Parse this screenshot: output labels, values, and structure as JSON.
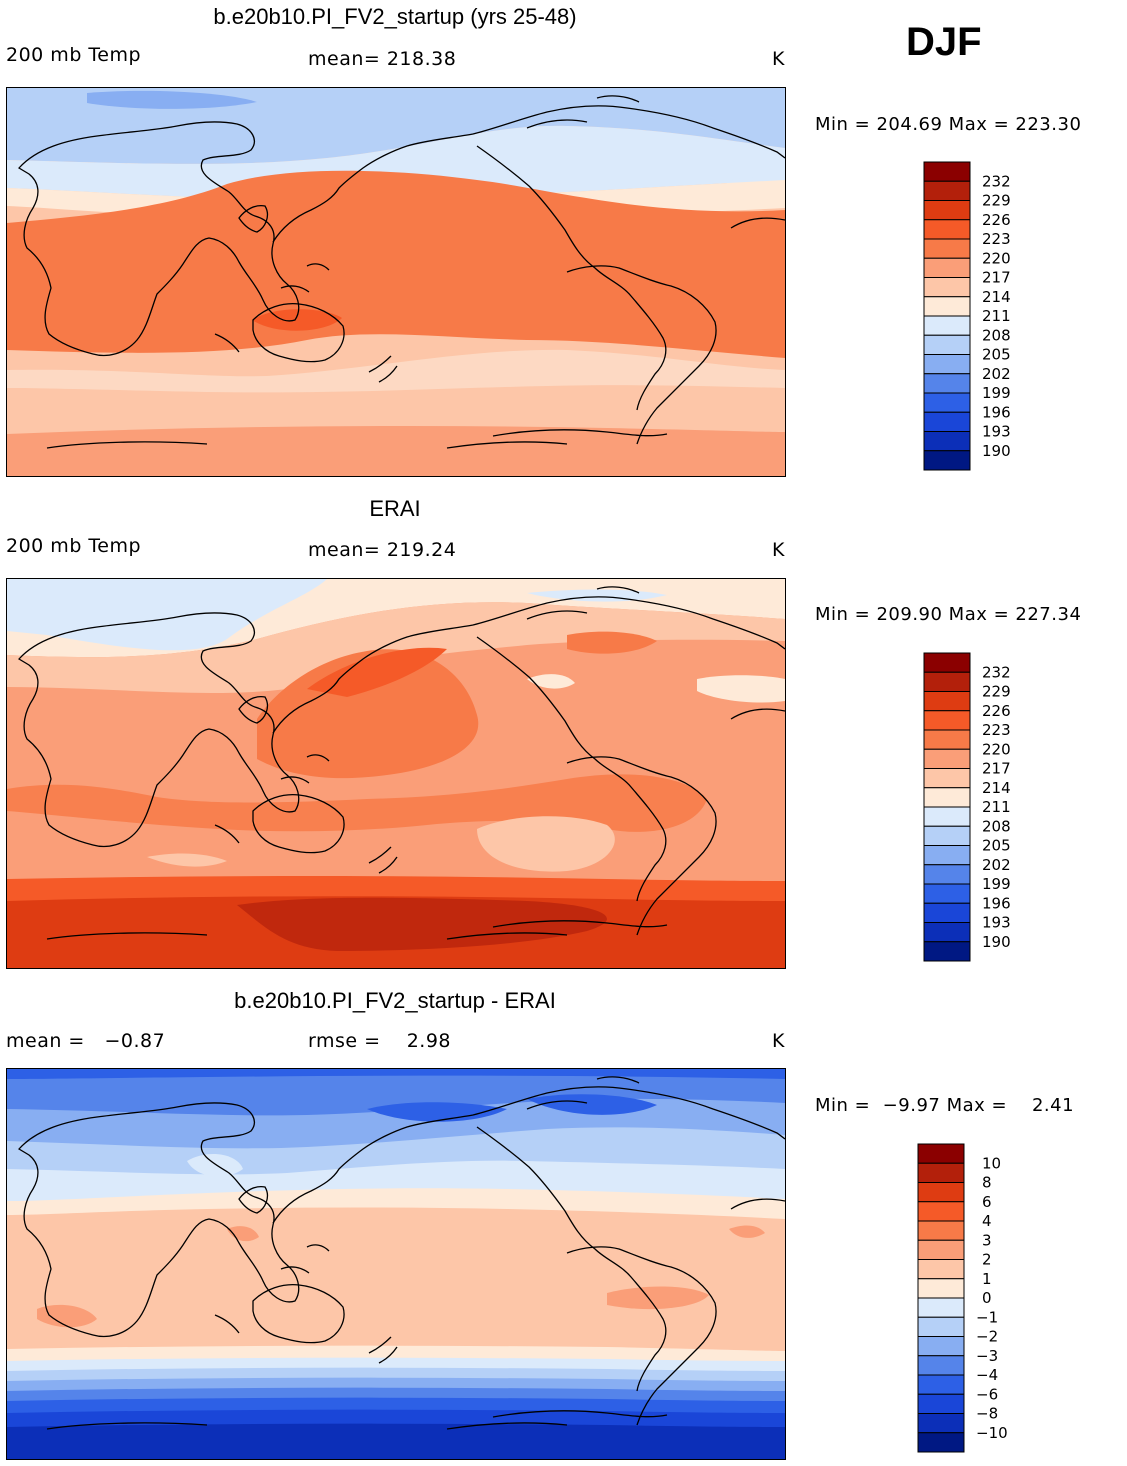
{
  "season": "DJF",
  "chart_data": [
    {
      "type": "heatmap",
      "title": "b.e20b10.PI_FV2_startup (yrs 25-48)",
      "left_label": "200 mb Temp",
      "center_label": "mean= 218.38",
      "units": "K",
      "stats": "Min = 204.69 Max = 223.30",
      "colorbar_labels": [
        "232",
        "229",
        "226",
        "223",
        "220",
        "217",
        "214",
        "211",
        "208",
        "205",
        "202",
        "199",
        "196",
        "193",
        "190"
      ]
    },
    {
      "type": "heatmap",
      "title": "ERAI",
      "left_label": "200 mb Temp",
      "center_label": "mean= 219.24",
      "units": "K",
      "stats": "Min = 209.90 Max = 227.34",
      "colorbar_labels": [
        "232",
        "229",
        "226",
        "223",
        "220",
        "217",
        "214",
        "211",
        "208",
        "205",
        "202",
        "199",
        "196",
        "193",
        "190"
      ]
    },
    {
      "type": "heatmap",
      "title": "b.e20b10.PI_FV2_startup - ERAI",
      "left_label": "mean =   −0.87",
      "center_label": "rmse =    2.98",
      "units": "K",
      "stats": "Min =  −9.97 Max =    2.41",
      "colorbar_labels": [
        "10",
        "8",
        "6",
        "4",
        "3",
        "2",
        "1",
        "0",
        "−1",
        "−2",
        "−3",
        "−4",
        "−6",
        "−8",
        "−10"
      ]
    }
  ],
  "colors": {
    "c16": "#8b0000",
    "c15": "#b3200b",
    "c14": "#de3c12",
    "c13": "#f55a28",
    "c12": "#f77a48",
    "c11": "#fa9e78",
    "c10": "#fdc6a8",
    "c9": "#feead8",
    "c8": "#dbeafb",
    "c7": "#b5d0f7",
    "c6": "#88aef2",
    "c5": "#5584ea",
    "c4": "#2d60e6",
    "c3": "#1a46d8",
    "c2": "#0c2fb8",
    "c1": "#001883"
  }
}
